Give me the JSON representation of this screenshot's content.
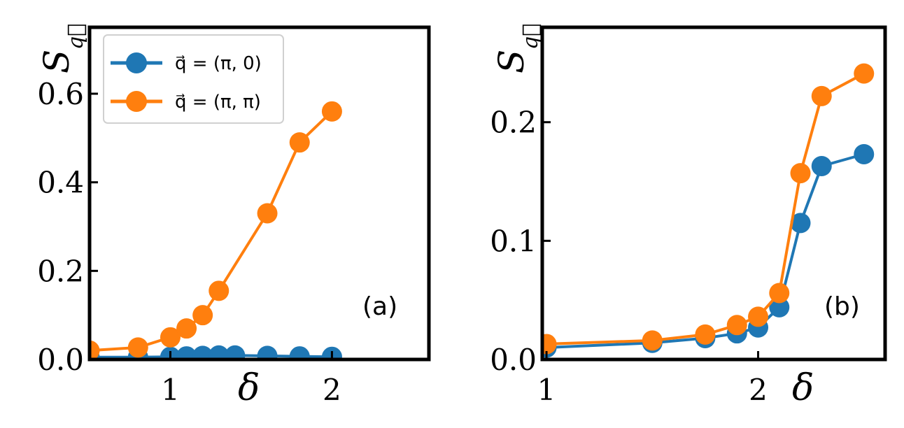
{
  "chart_data": [
    {
      "type": "line",
      "panel_label": "(a)",
      "xlabel": "δ",
      "ylabel": "S",
      "ylabel_subscript": "q⃗",
      "xlim": [
        0.5,
        2.6
      ],
      "ylim": [
        0,
        0.75
      ],
      "xticks": [
        {
          "v": 1,
          "label": "1"
        },
        {
          "v": 2,
          "label": "2"
        }
      ],
      "yticks": [
        {
          "v": 0,
          "label": "0.0"
        },
        {
          "v": 0.2,
          "label": "0.2"
        },
        {
          "v": 0.4,
          "label": "0.4"
        },
        {
          "v": 0.6,
          "label": "0.6"
        }
      ],
      "legend": "top-left",
      "series": [
        {
          "name": "q⃗ = (π, 0)",
          "color": "#1f77b4",
          "x": [
            0.5,
            0.8,
            1.0,
            1.1,
            1.2,
            1.3,
            1.4,
            1.6,
            1.8,
            2.0
          ],
          "y": [
            0.005,
            0.005,
            0.006,
            0.007,
            0.008,
            0.009,
            0.009,
            0.008,
            0.007,
            0.006
          ]
        },
        {
          "name": "q⃗ = (π, π)",
          "color": "#ff7f0e",
          "x": [
            0.5,
            0.8,
            1.0,
            1.1,
            1.2,
            1.3,
            1.6,
            1.8,
            2.0
          ],
          "y": [
            0.02,
            0.027,
            0.05,
            0.07,
            0.1,
            0.155,
            0.33,
            0.49,
            0.56
          ]
        }
      ]
    },
    {
      "type": "line",
      "panel_label": "(b)",
      "xlabel": "δ",
      "ylabel": "S",
      "ylabel_subscript": "q⃗",
      "xlim": [
        0.98,
        2.6
      ],
      "ylim": [
        0,
        0.28
      ],
      "xticks": [
        {
          "v": 1,
          "label": "1"
        },
        {
          "v": 2,
          "label": "2"
        }
      ],
      "yticks": [
        {
          "v": 0,
          "label": "0.0"
        },
        {
          "v": 0.1,
          "label": "0.1"
        },
        {
          "v": 0.2,
          "label": "0.2"
        }
      ],
      "series": [
        {
          "name": "q⃗ = (π, 0)",
          "color": "#1f77b4",
          "x": [
            1.0,
            1.5,
            1.75,
            1.9,
            2.0,
            2.1,
            2.2,
            2.3,
            2.5
          ],
          "y": [
            0.01,
            0.014,
            0.018,
            0.022,
            0.027,
            0.044,
            0.115,
            0.163,
            0.173
          ]
        },
        {
          "name": "q⃗ = (π, π)",
          "color": "#ff7f0e",
          "x": [
            1.0,
            1.5,
            1.75,
            1.9,
            2.0,
            2.1,
            2.2,
            2.3,
            2.5
          ],
          "y": [
            0.013,
            0.016,
            0.021,
            0.029,
            0.036,
            0.056,
            0.157,
            0.222,
            0.241
          ]
        }
      ]
    }
  ]
}
